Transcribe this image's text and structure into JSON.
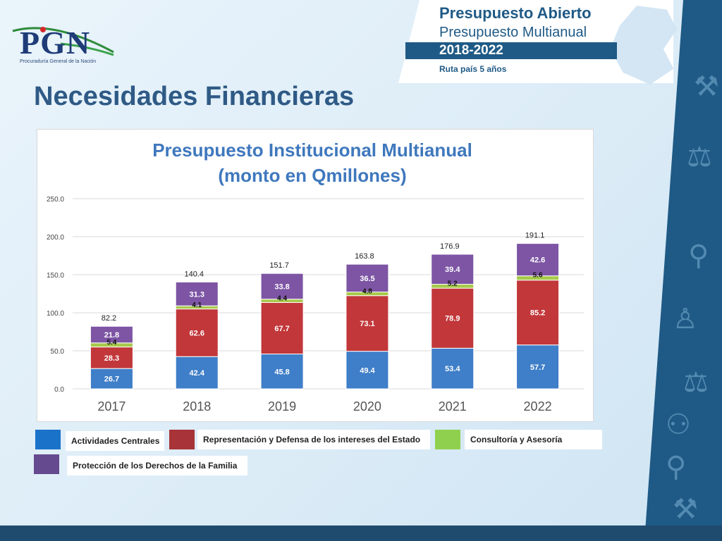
{
  "logo": {
    "text": "PGN",
    "subtitle": "Procuraduría General de la Nación"
  },
  "banner": {
    "title": "Presupuesto Abierto",
    "subtitle": "Presupuesto Multianual",
    "years": "2018-2022",
    "route": "Ruta país 5 años"
  },
  "page": {
    "title": "Necesidades Financieras"
  },
  "colors": {
    "actividades": "#3f7ec8",
    "representacion": "#c2373a",
    "consultoria": "#a7c94a",
    "proteccion": "#7d55a4",
    "brand_blue": "#1f5a86"
  },
  "chart_data": {
    "type": "bar",
    "stacked": true,
    "title": "Presupuesto Institucional Multianual",
    "subtitle": "(monto en Qmillones)",
    "categories": [
      "2017",
      "2018",
      "2019",
      "2020",
      "2021",
      "2022"
    ],
    "series": [
      {
        "name": "Actividades Centrales",
        "values": [
          26.7,
          42.4,
          45.8,
          49.4,
          53.4,
          57.7
        ]
      },
      {
        "name": "Representación y Defensa de los intereses del Estado",
        "values": [
          28.3,
          62.6,
          67.7,
          73.1,
          78.9,
          85.2
        ]
      },
      {
        "name": "Consultoría y Asesoría",
        "values": [
          5.4,
          4.1,
          4.4,
          4.8,
          5.2,
          5.6
        ]
      },
      {
        "name": "Protección de los Derechos de la Familia",
        "values": [
          21.8,
          31.3,
          33.8,
          36.5,
          39.4,
          42.6
        ]
      }
    ],
    "totals": [
      "82.2",
      "140.4",
      "151.7",
      "163.8",
      "176.9",
      "191.1"
    ],
    "value_labels": [
      [
        "26.7",
        "42.4",
        "45.8",
        "49.4",
        "53.4",
        "57.7"
      ],
      [
        "28.3",
        "62.6",
        "67.7",
        "73.1",
        "78.9",
        "85.2"
      ],
      [
        "5.4",
        "4.1",
        "4.4",
        "4.8",
        "5.2",
        "5.6"
      ],
      [
        "21.8",
        "31.3",
        "33.8",
        "36.5",
        "39.4",
        "42.6"
      ]
    ],
    "yticks": [
      "0.0",
      "50.0",
      "100.0",
      "150.0",
      "200.0",
      "250.0"
    ],
    "ylim": [
      0,
      250
    ],
    "grid": true
  },
  "legend": [
    {
      "label": "Actividades Centrales"
    },
    {
      "label": "Representación y Defensa de los intereses del Estado"
    },
    {
      "label": "Consultoría y Asesoría"
    },
    {
      "label": "Protección de los Derechos de la Familia"
    }
  ]
}
